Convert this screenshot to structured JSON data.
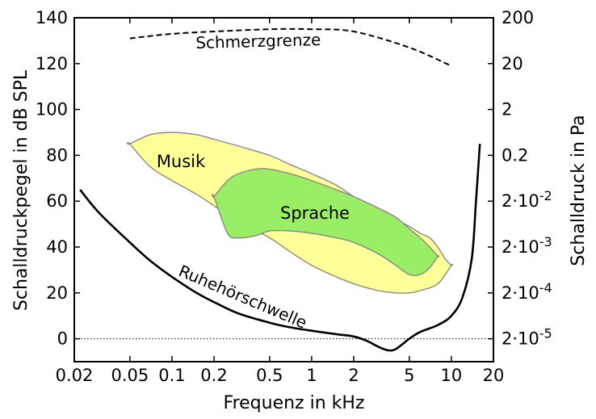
{
  "chart_data": {
    "type": "area",
    "xlabel": "Frequenz in kHz",
    "ylabel": "Schalldruckpegel in dB SPL",
    "ylabel_right": "Schalldruck in Pa",
    "x_scale": "log",
    "xlim": [
      0.02,
      20
    ],
    "ylim": [
      -10,
      140
    ],
    "x_ticks": [
      {
        "value": 0.02,
        "label": "0.02"
      },
      {
        "value": 0.05,
        "label": "0.05"
      },
      {
        "value": 0.1,
        "label": "0.1"
      },
      {
        "value": 0.2,
        "label": "0.2"
      },
      {
        "value": 0.5,
        "label": "0.5"
      },
      {
        "value": 1,
        "label": "1"
      },
      {
        "value": 2,
        "label": "2"
      },
      {
        "value": 5,
        "label": "5"
      },
      {
        "value": 10,
        "label": "10"
      },
      {
        "value": 20,
        "label": "20"
      }
    ],
    "y_ticks": [
      0,
      20,
      40,
      60,
      80,
      100,
      120,
      140
    ],
    "y_right_ticks": [
      {
        "db": 140,
        "base": "200",
        "exp": ""
      },
      {
        "db": 120,
        "base": "20",
        "exp": ""
      },
      {
        "db": 100,
        "base": "2",
        "exp": ""
      },
      {
        "db": 80,
        "base": "0.2",
        "exp": ""
      },
      {
        "db": 60,
        "base": "2·10",
        "exp": "-2"
      },
      {
        "db": 40,
        "base": "2·10",
        "exp": "-3"
      },
      {
        "db": 20,
        "base": "2·10",
        "exp": "-4"
      },
      {
        "db": 0,
        "base": "2·10",
        "exp": "-5"
      }
    ],
    "reference_line": {
      "y": 0,
      "style": "dotted"
    },
    "curves": [
      {
        "label": "Schmerzgrenze",
        "style": "dashed",
        "x": [
          0.05,
          0.1,
          0.2,
          0.5,
          1,
          2,
          5,
          10
        ],
        "y": [
          131,
          133,
          134,
          135,
          135,
          134,
          127,
          119
        ]
      },
      {
        "label": "Ruhehörschwelle",
        "style": "solid",
        "x": [
          0.022,
          0.03,
          0.05,
          0.07,
          0.1,
          0.15,
          0.2,
          0.3,
          0.5,
          0.7,
          1,
          1.5,
          2,
          2.5,
          3,
          3.5,
          4,
          5,
          6,
          8,
          10,
          12,
          14,
          15,
          16
        ],
        "y": [
          65,
          55,
          42,
          34,
          27,
          20,
          16,
          11,
          7,
          5,
          3.5,
          2,
          1,
          -1,
          -3.5,
          -5,
          -4.5,
          0,
          3,
          6,
          10,
          18,
          35,
          60,
          85
        ]
      }
    ],
    "regions": [
      {
        "label": "Musik",
        "fill": "#ffff99",
        "boundary": {
          "x": [
            0.05,
            0.07,
            0.1,
            0.15,
            0.2,
            0.3,
            0.5,
            0.7,
            1,
            1.5,
            2,
            3,
            4,
            5,
            6,
            7,
            8,
            9,
            10,
            10,
            8,
            6,
            5,
            4,
            3,
            2,
            1.5,
            1,
            0.7,
            0.5,
            0.3,
            0.2,
            0.15,
            0.1,
            0.07,
            0.05
          ],
          "y": [
            85,
            89,
            90,
            89,
            87,
            84,
            80,
            76,
            72,
            67,
            62,
            56,
            52,
            49,
            46,
            44,
            40,
            35,
            32,
            32,
            24,
            21,
            20,
            20,
            21,
            24,
            27,
            32,
            38,
            44,
            51,
            58,
            63,
            69,
            75,
            85
          ]
        }
      },
      {
        "label": "Sprache",
        "fill": "#99ee66",
        "boundary": {
          "x": [
            0.2,
            0.25,
            0.3,
            0.4,
            0.5,
            0.7,
            1,
            1.5,
            2,
            3,
            4,
            5,
            6,
            7,
            8,
            8,
            7,
            6,
            5,
            4,
            3,
            2,
            1.5,
            1,
            0.7,
            0.5,
            0.4,
            0.3,
            0.25,
            0.2
          ],
          "y": [
            62,
            69,
            72,
            74,
            74,
            72,
            69,
            65,
            62,
            57,
            53,
            48,
            44,
            40,
            36,
            36,
            31,
            28,
            28,
            32,
            37,
            42,
            44,
            46,
            47,
            47,
            45,
            44,
            46,
            62
          ]
        }
      }
    ]
  }
}
